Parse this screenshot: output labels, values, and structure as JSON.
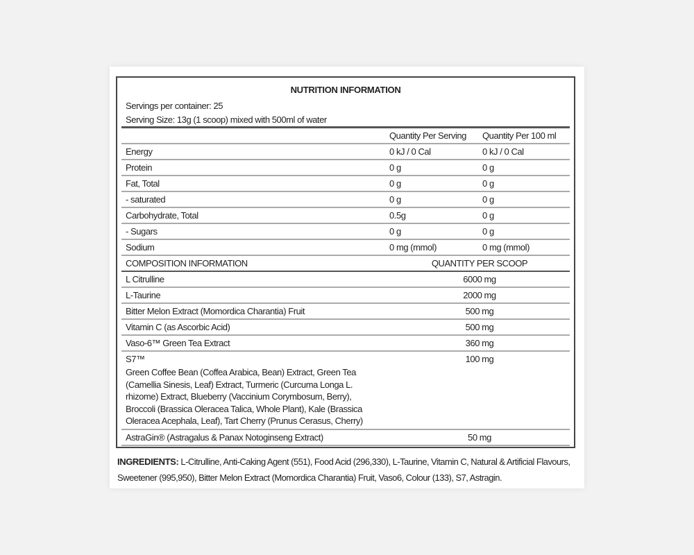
{
  "title": "NUTRITION INFORMATION",
  "servings_per_container": "Servings per container: 25",
  "serving_size": "Serving Size: 13g (1 scoop) mixed with 500ml of water",
  "nutrition": {
    "headers": [
      "",
      "Quantity Per Serving",
      "Quantity Per 100 ml"
    ],
    "rows": [
      [
        "Energy",
        "0 kJ /  0 Cal",
        "0 kJ / 0 Cal"
      ],
      [
        "Protein",
        "0 g",
        "0 g"
      ],
      [
        "Fat, Total",
        "0 g",
        "0 g"
      ],
      [
        "- saturated",
        "0 g",
        "0 g"
      ],
      [
        "Carbohydrate, Total",
        "0.5g",
        "0 g"
      ],
      [
        "- Sugars",
        "0 g",
        "0 g"
      ],
      [
        "Sodium",
        "0 mg (mmol)",
        "0 mg (mmol)"
      ]
    ]
  },
  "composition": {
    "headers": [
      "COMPOSITION INFORMATION",
      "QUANTITY PER SCOOP"
    ],
    "rows": [
      [
        "L Citrulline",
        "6000 mg"
      ],
      [
        "L-Taurine",
        "2000 mg"
      ],
      [
        "Bitter Melon Extract (Momordica Charantia) Fruit",
        "500 mg"
      ],
      [
        "Vitamin C (as Ascorbic Acid)",
        "500 mg"
      ],
      [
        "Vaso-6™ Green Tea Extract",
        "360 mg"
      ]
    ],
    "s7": {
      "name": "S7™",
      "quantity": "100 mg",
      "description": "Green Coffee Bean (Coffea Arabica, Bean) Extract, Green Tea (Camellia Sinesis, Leaf) Extract, Turmeric (Curcuma Longa L. rhizome) Extract, Blueberry (Vaccinium Corymbosum, Berry), Broccoli (Brassica Oleracea Talica, Whole Plant), Kale (Brassica Oleracea Acephala, Leaf), Tart Cherry (Prunus Cerasus, Cherry)"
    },
    "astragin": [
      "AstraGin® (Astragalus & Panax Notoginseng Extract)",
      "50 mg"
    ]
  },
  "ingredients": {
    "label": "INGREDIENTS:",
    "text": " L-Citrulline, Anti-Caking Agent (551), Food Acid (296,330), L-Taurine, Vitamin C, Natural & Artificial Flavours, Sweetener (995,950), Bitter Melon Extract (Momordica Charantia) Fruit, Vaso6, Colour (133), S7, Astragin."
  }
}
